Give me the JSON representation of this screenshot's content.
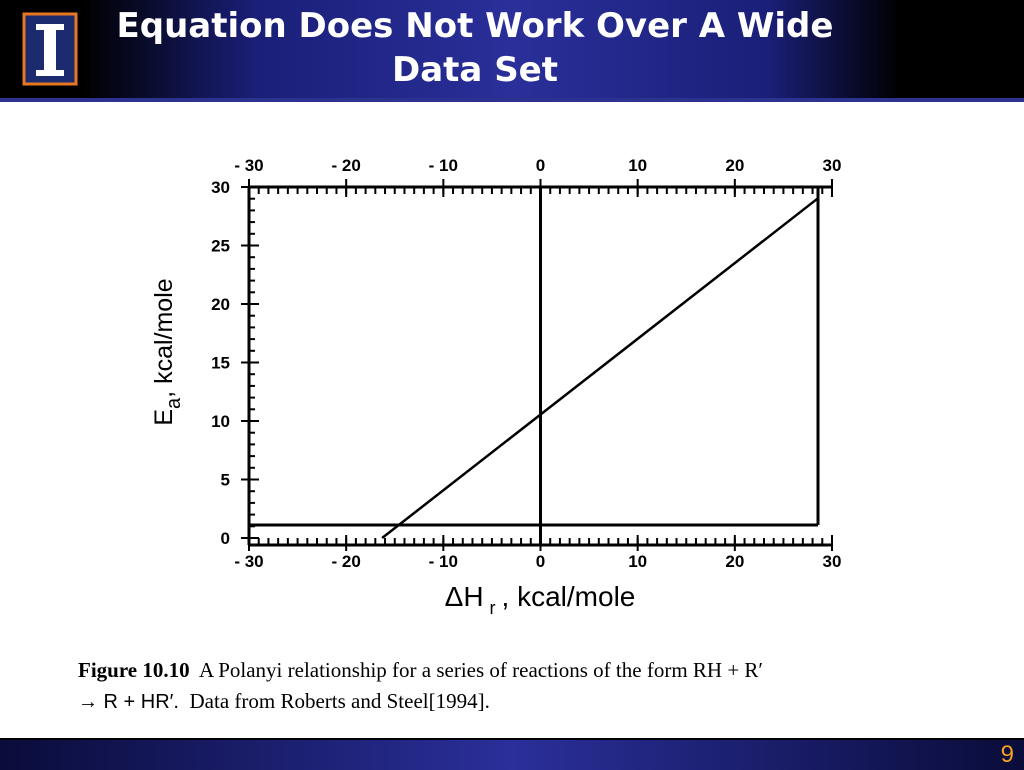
{
  "slide": {
    "title_lines": [
      "Equation Does Not Work Over A Wide",
      "Data Set"
    ],
    "page_number": "9"
  },
  "chart_data": {
    "type": "line",
    "x": [
      -16.3,
      28.5
    ],
    "values": [
      0,
      29
    ],
    "color": "#000000",
    "xlim": [
      -30,
      30
    ],
    "ylim": [
      0,
      30
    ],
    "xticks": [
      {
        "value": -30,
        "label": "- 30"
      },
      {
        "value": -20,
        "label": "- 20"
      },
      {
        "value": -10,
        "label": "- 10"
      },
      0,
      10,
      20,
      30
    ],
    "yticks": [
      0,
      5,
      10,
      15,
      20,
      25,
      30
    ],
    "x_minor_step": 1,
    "y_minor_step": 1,
    "vlines": [
      0
    ],
    "x_label": {
      "symbol": "ΔH",
      "sub": "r",
      "rest": ", kcal/mole"
    },
    "y_label": {
      "symbol": "E",
      "sub": "a",
      "rest": ", kcal/mole"
    }
  },
  "caption": {
    "figure": "Figure 10.10",
    "line1": "A Polanyi relationship for a series of reactions of the form RH + R′",
    "line2_formula": "→ R + HR′.",
    "line2_rest": "Data from Roberts and Steel[1994]."
  }
}
